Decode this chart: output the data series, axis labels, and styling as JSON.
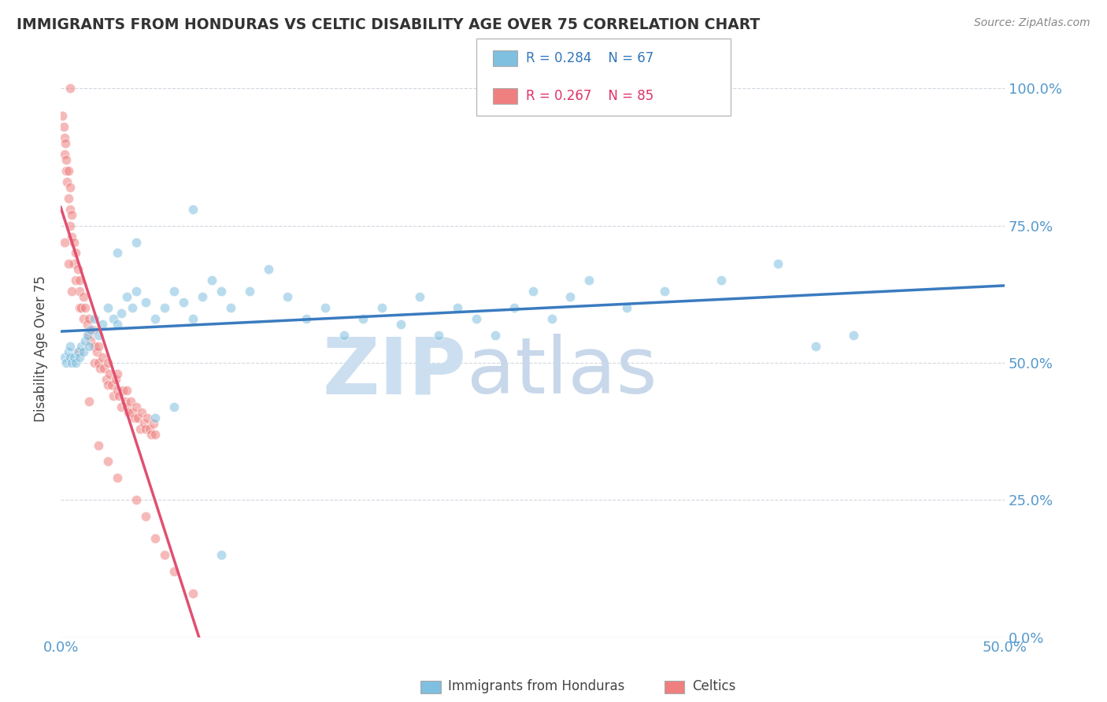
{
  "title": "IMMIGRANTS FROM HONDURAS VS CELTIC DISABILITY AGE OVER 75 CORRELATION CHART",
  "source_text": "Source: ZipAtlas.com",
  "ylabel": "Disability Age Over 75",
  "xlim": [
    0,
    50
  ],
  "ylim": [
    0,
    105
  ],
  "blue_color": "#7fbfdf",
  "pink_color": "#f08080",
  "blue_line_color": "#3a7bbf",
  "pink_line_color": "#e05070",
  "watermark_zip_color": "#c8dff0",
  "watermark_atlas_color": "#b8cfe8",
  "legend_r_blue": "R = 0.284",
  "legend_n_blue": "N = 67",
  "legend_r_pink": "R = 0.267",
  "legend_n_pink": "N = 85",
  "blue_scatter": [
    [
      0.2,
      51
    ],
    [
      0.3,
      50
    ],
    [
      0.4,
      52
    ],
    [
      0.5,
      51
    ],
    [
      0.5,
      53
    ],
    [
      0.6,
      50
    ],
    [
      0.7,
      51
    ],
    [
      0.8,
      50
    ],
    [
      0.9,
      52
    ],
    [
      1.0,
      51
    ],
    [
      1.1,
      53
    ],
    [
      1.2,
      52
    ],
    [
      1.3,
      54
    ],
    [
      1.4,
      55
    ],
    [
      1.5,
      53
    ],
    [
      1.6,
      56
    ],
    [
      1.8,
      58
    ],
    [
      2.0,
      55
    ],
    [
      2.2,
      57
    ],
    [
      2.5,
      60
    ],
    [
      2.8,
      58
    ],
    [
      3.0,
      57
    ],
    [
      3.2,
      59
    ],
    [
      3.5,
      62
    ],
    [
      3.8,
      60
    ],
    [
      4.0,
      63
    ],
    [
      4.5,
      61
    ],
    [
      5.0,
      58
    ],
    [
      5.5,
      60
    ],
    [
      6.0,
      63
    ],
    [
      6.5,
      61
    ],
    [
      7.0,
      58
    ],
    [
      7.5,
      62
    ],
    [
      8.0,
      65
    ],
    [
      8.5,
      63
    ],
    [
      9.0,
      60
    ],
    [
      10.0,
      63
    ],
    [
      11.0,
      67
    ],
    [
      12.0,
      62
    ],
    [
      13.0,
      58
    ],
    [
      14.0,
      60
    ],
    [
      15.0,
      55
    ],
    [
      16.0,
      58
    ],
    [
      17.0,
      60
    ],
    [
      18.0,
      57
    ],
    [
      19.0,
      62
    ],
    [
      20.0,
      55
    ],
    [
      21.0,
      60
    ],
    [
      22.0,
      58
    ],
    [
      23.0,
      55
    ],
    [
      24.0,
      60
    ],
    [
      25.0,
      63
    ],
    [
      26.0,
      58
    ],
    [
      27.0,
      62
    ],
    [
      28.0,
      65
    ],
    [
      30.0,
      60
    ],
    [
      32.0,
      63
    ],
    [
      35.0,
      65
    ],
    [
      38.0,
      68
    ],
    [
      3.0,
      70
    ],
    [
      4.0,
      72
    ],
    [
      5.0,
      40
    ],
    [
      6.0,
      42
    ],
    [
      7.0,
      78
    ],
    [
      8.5,
      15
    ],
    [
      40.0,
      53
    ],
    [
      42.0,
      55
    ]
  ],
  "pink_scatter": [
    [
      0.1,
      95
    ],
    [
      0.15,
      93
    ],
    [
      0.2,
      91
    ],
    [
      0.2,
      88
    ],
    [
      0.25,
      90
    ],
    [
      0.3,
      87
    ],
    [
      0.3,
      85
    ],
    [
      0.35,
      83
    ],
    [
      0.4,
      80
    ],
    [
      0.4,
      85
    ],
    [
      0.5,
      78
    ],
    [
      0.5,
      82
    ],
    [
      0.5,
      75
    ],
    [
      0.6,
      77
    ],
    [
      0.6,
      73
    ],
    [
      0.7,
      72
    ],
    [
      0.7,
      68
    ],
    [
      0.8,
      70
    ],
    [
      0.8,
      65
    ],
    [
      0.9,
      67
    ],
    [
      1.0,
      63
    ],
    [
      1.0,
      60
    ],
    [
      1.0,
      65
    ],
    [
      1.1,
      60
    ],
    [
      1.2,
      62
    ],
    [
      1.2,
      58
    ],
    [
      1.3,
      60
    ],
    [
      1.4,
      57
    ],
    [
      1.5,
      55
    ],
    [
      1.5,
      58
    ],
    [
      1.6,
      54
    ],
    [
      1.7,
      56
    ],
    [
      1.8,
      53
    ],
    [
      1.8,
      50
    ],
    [
      1.9,
      52
    ],
    [
      2.0,
      50
    ],
    [
      2.0,
      53
    ],
    [
      2.1,
      49
    ],
    [
      2.2,
      51
    ],
    [
      2.3,
      49
    ],
    [
      2.4,
      47
    ],
    [
      2.5,
      50
    ],
    [
      2.5,
      46
    ],
    [
      2.6,
      48
    ],
    [
      2.7,
      46
    ],
    [
      2.8,
      44
    ],
    [
      2.9,
      47
    ],
    [
      3.0,
      45
    ],
    [
      3.0,
      48
    ],
    [
      3.1,
      44
    ],
    [
      3.2,
      42
    ],
    [
      3.3,
      45
    ],
    [
      3.4,
      43
    ],
    [
      3.5,
      42
    ],
    [
      3.5,
      45
    ],
    [
      3.6,
      41
    ],
    [
      3.7,
      43
    ],
    [
      3.8,
      41
    ],
    [
      3.9,
      40
    ],
    [
      4.0,
      42
    ],
    [
      4.1,
      40
    ],
    [
      4.2,
      38
    ],
    [
      4.3,
      41
    ],
    [
      4.4,
      39
    ],
    [
      4.5,
      38
    ],
    [
      4.6,
      40
    ],
    [
      4.7,
      38
    ],
    [
      4.8,
      37
    ],
    [
      4.9,
      39
    ],
    [
      5.0,
      37
    ],
    [
      0.2,
      72
    ],
    [
      0.4,
      68
    ],
    [
      0.6,
      63
    ],
    [
      1.0,
      52
    ],
    [
      1.5,
      43
    ],
    [
      2.0,
      35
    ],
    [
      2.5,
      32
    ],
    [
      3.0,
      29
    ],
    [
      4.0,
      25
    ],
    [
      4.5,
      22
    ],
    [
      5.0,
      18
    ],
    [
      5.5,
      15
    ],
    [
      6.0,
      12
    ],
    [
      7.0,
      8
    ],
    [
      0.5,
      100
    ]
  ]
}
